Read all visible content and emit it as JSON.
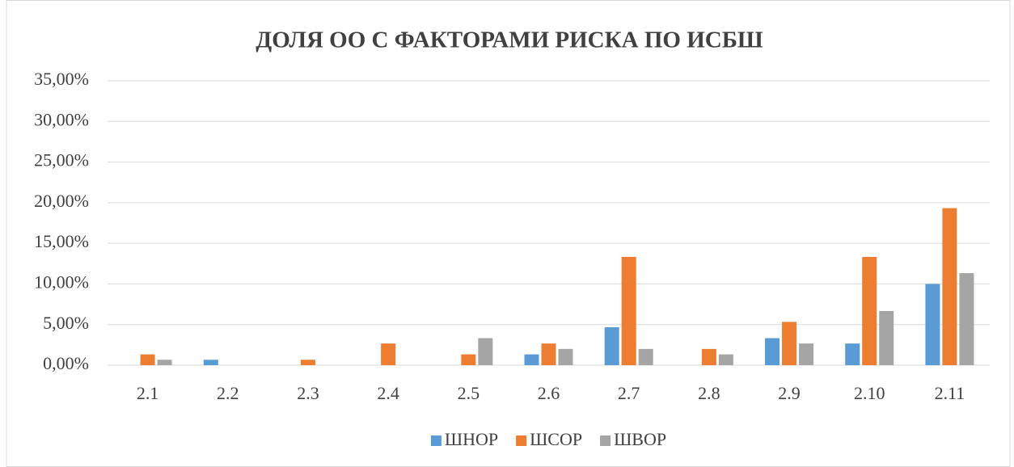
{
  "chart_data": {
    "type": "bar",
    "title": "ДОЛЯ ОО С ФАКТОРАМИ РИСКА ПО ИСБШ",
    "categories": [
      "2.1",
      "2.2",
      "2.3",
      "2.4",
      "2.5",
      "2.6",
      "2.7",
      "2.8",
      "2.9",
      "2.10",
      "2.11"
    ],
    "series": [
      {
        "name": "ШНОР",
        "color": "#5b9bd5",
        "values": [
          0,
          0.67,
          0,
          0,
          0,
          1.33,
          4.67,
          0,
          3.33,
          2.67,
          10.0
        ]
      },
      {
        "name": "ШСОР",
        "color": "#ed7d31",
        "values": [
          1.33,
          0,
          0.67,
          2.67,
          1.33,
          2.67,
          13.33,
          2.0,
          5.33,
          13.33,
          19.33
        ]
      },
      {
        "name": "ШВОР",
        "color": "#a5a5a5",
        "values": [
          0.67,
          0,
          0,
          0,
          3.33,
          2.0,
          2.0,
          1.33,
          2.67,
          6.67,
          11.33
        ]
      }
    ],
    "ylim": [
      0,
      35
    ],
    "yticks": [
      {
        "value": 0,
        "label": "0,00%"
      },
      {
        "value": 5,
        "label": "5,00%"
      },
      {
        "value": 10,
        "label": "10,00%"
      },
      {
        "value": 15,
        "label": "15,00%"
      },
      {
        "value": 20,
        "label": "20,00%"
      },
      {
        "value": 25,
        "label": "25,00%"
      },
      {
        "value": 30,
        "label": "30,00%"
      },
      {
        "value": 35,
        "label": "35,00%"
      }
    ],
    "grid": true,
    "legend": "bottom"
  }
}
